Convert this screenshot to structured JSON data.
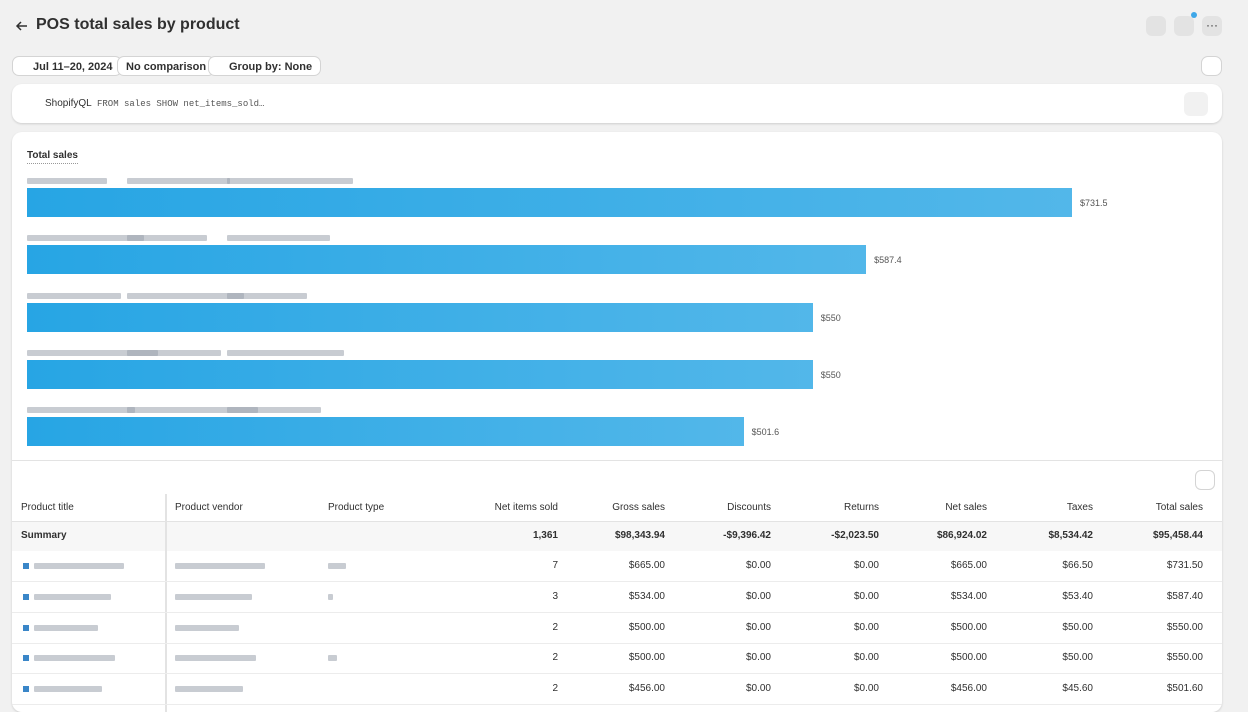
{
  "header": {
    "title": "POS total sales by product"
  },
  "filters": [
    "Jul 11–20, 2024",
    "No comparison",
    "Group by: None"
  ],
  "query": {
    "language": "ShopifyQL",
    "text": "FROM sales SHOW net_items_sold…"
  },
  "chart_data": {
    "type": "bar",
    "orientation": "horizontal",
    "title": "Total sales",
    "categories": [
      null,
      null,
      null,
      null,
      null
    ],
    "values": [
      731.5,
      587.4,
      550,
      550,
      501.6
    ],
    "value_labels": [
      "$731.5",
      "$587.4",
      "$550",
      "$550",
      "$501.6"
    ],
    "color": "#27a5e4"
  },
  "table": {
    "columns": [
      "Product title",
      "Product vendor",
      "Product type",
      "Net items sold",
      "Gross sales",
      "Discounts",
      "Returns",
      "Net sales",
      "Taxes",
      "Total sales"
    ],
    "summary": {
      "label": "Summary",
      "values": [
        "1,361",
        "$98,343.94",
        "-$9,396.42",
        "-$2,023.50",
        "$86,924.02",
        "$8,534.42",
        "$95,458.44"
      ]
    },
    "rows": [
      [
        "7",
        "$665.00",
        "$0.00",
        "$0.00",
        "$665.00",
        "$66.50",
        "$731.50"
      ],
      [
        "3",
        "$534.00",
        "$0.00",
        "$0.00",
        "$534.00",
        "$53.40",
        "$587.40"
      ],
      [
        "2",
        "$500.00",
        "$0.00",
        "$0.00",
        "$500.00",
        "$50.00",
        "$550.00"
      ],
      [
        "2",
        "$500.00",
        "$0.00",
        "$0.00",
        "$500.00",
        "$50.00",
        "$550.00"
      ],
      [
        "2",
        "$456.00",
        "$0.00",
        "$0.00",
        "$456.00",
        "$45.60",
        "$501.60"
      ]
    ]
  }
}
